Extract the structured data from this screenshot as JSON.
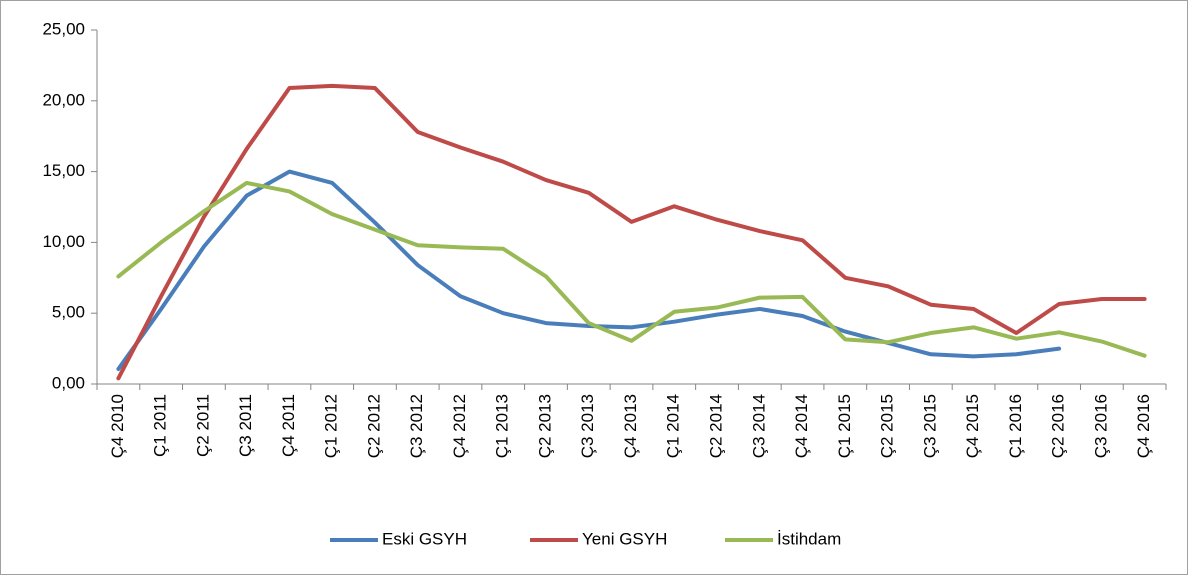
{
  "chart_data": {
    "type": "line",
    "categories": [
      "Ç4 2010",
      "Ç1 2011",
      "Ç2 2011",
      "Ç3 2011",
      "Ç4 2011",
      "Ç1 2012",
      "Ç2 2012",
      "Ç3 2012",
      "Ç4 2012",
      "Ç1 2013",
      "Ç2 2013",
      "Ç3 2013",
      "Ç4 2013",
      "Ç1 2014",
      "Ç2 2014",
      "Ç3 2014",
      "Ç4 2014",
      "Ç1 2015",
      "Ç2 2015",
      "Ç3 2015",
      "Ç4 2015",
      "Ç1 2016",
      "Ç2 2016",
      "Ç3 2016",
      "Ç4 2016"
    ],
    "series": [
      {
        "name": "Eski GSYH",
        "color": "#4a7ebb",
        "values": [
          1.06,
          5.3,
          9.7,
          13.3,
          15.0,
          14.2,
          11.4,
          8.4,
          6.2,
          5.0,
          4.3,
          4.1,
          4.0,
          4.4,
          4.9,
          5.3,
          4.8,
          3.7,
          2.9,
          2.1,
          1.95,
          2.1,
          2.5,
          null,
          null
        ]
      },
      {
        "name": "Yeni GSYH",
        "color": "#be4b48",
        "values": [
          0.4,
          6.2,
          11.8,
          16.6,
          20.9,
          21.05,
          20.9,
          17.8,
          16.7,
          15.7,
          14.4,
          13.5,
          11.45,
          12.55,
          11.6,
          10.8,
          10.15,
          7.5,
          6.9,
          5.6,
          5.3,
          3.6,
          5.65,
          6.0,
          6.0
        ]
      },
      {
        "name": "İstihdam",
        "color": "#98b954",
        "values": [
          7.6,
          10.0,
          12.2,
          14.2,
          13.6,
          12.0,
          10.9,
          9.8,
          9.65,
          9.55,
          7.6,
          4.3,
          3.05,
          5.1,
          5.4,
          6.1,
          6.15,
          3.15,
          2.95,
          3.6,
          4.0,
          3.2,
          3.65,
          3.0,
          2.0
        ]
      }
    ],
    "ylim": [
      0,
      25
    ],
    "yticks": [
      {
        "value": 0,
        "label": "0,00"
      },
      {
        "value": 5,
        "label": "5,00"
      },
      {
        "value": 10,
        "label": "10,00"
      },
      {
        "value": 15,
        "label": "15,00"
      },
      {
        "value": 20,
        "label": "20,00"
      },
      {
        "value": 25,
        "label": "25,00"
      }
    ],
    "grid": false,
    "legend": "bottom"
  }
}
